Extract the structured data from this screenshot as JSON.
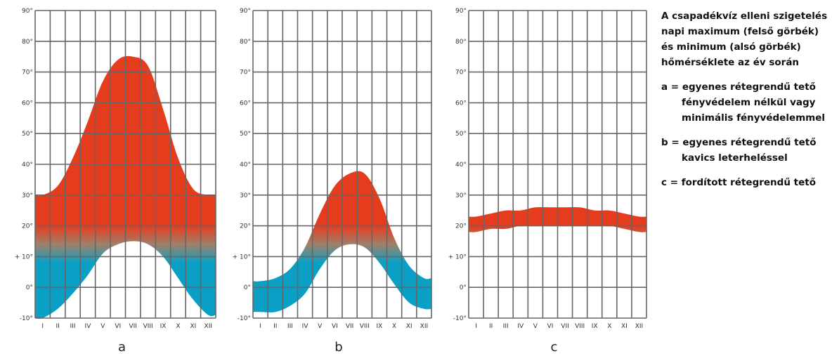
{
  "legend": {
    "title_lines": [
      "A csapadékvíz elleni szigetelés",
      "napi maximum (felső görbék)",
      "és minimum (alsó görbék)",
      "hőmérséklete az év során"
    ],
    "items": [
      {
        "lines": [
          "a = egyenes rétegrendű tető",
          "fényvédelem nélkül vagy",
          "minimális fényvédelemmel"
        ]
      },
      {
        "lines": [
          "b = egyenes rétegrendű tető",
          "kavics leterheléssel"
        ]
      },
      {
        "lines": [
          "c = fordított rétegrendű tető"
        ]
      }
    ]
  },
  "chart_data": [
    {
      "type": "area",
      "panel_label": "a",
      "categories": [
        "I",
        "II",
        "III",
        "IV",
        "V",
        "VI",
        "VII",
        "VIII",
        "IX",
        "X",
        "XI",
        "XII"
      ],
      "y_tick_labels": [
        "-10°",
        "0°",
        "+ 10°",
        "20°",
        "30°",
        "40°",
        "50°",
        "60°",
        "70°",
        "80°",
        "90°"
      ],
      "ylim": [
        -10,
        90
      ],
      "grid": true,
      "series": [
        {
          "values": [
            30,
            33,
            42,
            54,
            67,
            74,
            75,
            72,
            58,
            42,
            32,
            30
          ]
        },
        {
          "values": [
            -10,
            -7,
            -2,
            4,
            11,
            14,
            15,
            14,
            10,
            3,
            -4,
            -9
          ]
        }
      ],
      "colors": {
        "warm": "#e63c1e",
        "cold": "#0aa0c6",
        "grid": "#666666"
      }
    },
    {
      "type": "area",
      "panel_label": "b",
      "categories": [
        "I",
        "II",
        "III",
        "IV",
        "V",
        "VI",
        "VII",
        "VIII",
        "IX",
        "X",
        "XI",
        "XII"
      ],
      "y_tick_labels": [
        "-10°",
        "0°",
        "+ 10°",
        "20°",
        "30°",
        "40°",
        "50°",
        "60°",
        "70°",
        "80°",
        "90°"
      ],
      "ylim": [
        -10,
        90
      ],
      "grid": true,
      "series": [
        {
          "values": [
            2,
            3,
            6,
            13,
            24,
            33,
            37,
            37,
            29,
            16,
            7,
            3
          ]
        },
        {
          "values": [
            -8,
            -8,
            -6,
            -2,
            6,
            12,
            14,
            13,
            8,
            1,
            -5,
            -7
          ]
        }
      ],
      "colors": {
        "warm": "#e63c1e",
        "cold": "#0aa0c6",
        "grid": "#666666"
      }
    },
    {
      "type": "area",
      "panel_label": "c",
      "categories": [
        "I",
        "II",
        "III",
        "IV",
        "V",
        "VI",
        "VII",
        "VIII",
        "IX",
        "X",
        "XI",
        "XII"
      ],
      "y_tick_labels": [
        "-10°",
        "0°",
        "+ 10°",
        "20°",
        "30°",
        "40°",
        "50°",
        "60°",
        "70°",
        "80°",
        "90°"
      ],
      "ylim": [
        -10,
        90
      ],
      "grid": true,
      "series": [
        {
          "values": [
            23,
            24,
            25,
            25,
            26,
            26,
            26,
            26,
            25,
            25,
            24,
            23
          ]
        },
        {
          "values": [
            18,
            19,
            19,
            20,
            20,
            20,
            20,
            20,
            20,
            20,
            19,
            18
          ]
        }
      ],
      "colors": {
        "warm": "#e63c1e",
        "cold": "#0aa0c6",
        "grid": "#666666"
      }
    }
  ]
}
